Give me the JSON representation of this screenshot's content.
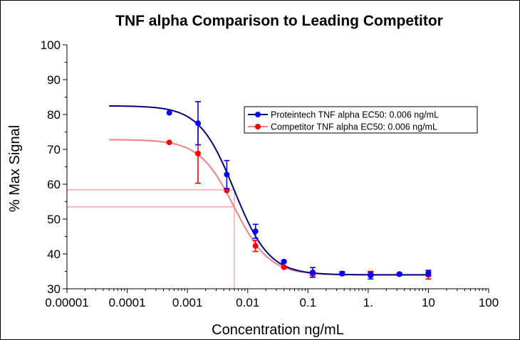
{
  "chart_data": {
    "type": "scatter",
    "title": "TNF alpha Comparison to Leading Competitor",
    "xlabel": "Concentration ng/mL",
    "ylabel": "% Max Signal",
    "x_scale": "log",
    "xlim": [
      1e-05,
      100
    ],
    "ylim": [
      30,
      100
    ],
    "x_ticks": [
      "0.00001",
      "0.0001",
      "0.001",
      "0.01",
      "0.1",
      "1.",
      "10",
      "100"
    ],
    "y_ticks": [
      "30",
      "40",
      "50",
      "60",
      "70",
      "80",
      "90",
      "100"
    ],
    "grid": false,
    "legend": "upper-right",
    "series": [
      {
        "name": "Proteintech TNF alpha EC50: 0.006 ng/mL",
        "color": "#0000ff",
        "curve_color": "#000080",
        "fit": {
          "top": 82.5,
          "bottom": 34.0,
          "ec50": 0.006,
          "hill": 1.5
        },
        "points": [
          {
            "x": 0.0005,
            "y": 80.5,
            "err": 0
          },
          {
            "x": 0.0015,
            "y": 77.5,
            "err": 6.2
          },
          {
            "x": 0.0045,
            "y": 62.8,
            "err": 4.0
          },
          {
            "x": 0.0135,
            "y": 46.5,
            "err": 2.0
          },
          {
            "x": 0.04,
            "y": 37.8,
            "err": 0.3
          },
          {
            "x": 0.12,
            "y": 34.7,
            "err": 1.4
          },
          {
            "x": 0.37,
            "y": 34.4,
            "err": 0.5
          },
          {
            "x": 1.1,
            "y": 33.8,
            "err": 1.0
          },
          {
            "x": 3.3,
            "y": 34.2,
            "err": 0.4
          },
          {
            "x": 10,
            "y": 34.5,
            "err": 0.8
          }
        ]
      },
      {
        "name": "Competitor TNF alpha EC50: 0.006 ng/mL",
        "color": "#ff0000",
        "curve_color": "#f08080",
        "fit": {
          "top": 72.8,
          "bottom": 34.0,
          "ec50": 0.006,
          "hill": 1.5
        },
        "points": [
          {
            "x": 0.0005,
            "y": 72.0,
            "err": 0
          },
          {
            "x": 0.0015,
            "y": 68.8,
            "err": 8.5
          },
          {
            "x": 0.0045,
            "y": 58.2,
            "err": 0
          },
          {
            "x": 0.0135,
            "y": 42.3,
            "err": 1.6
          },
          {
            "x": 0.04,
            "y": 36.2,
            "err": 0
          },
          {
            "x": 0.12,
            "y": 34.3,
            "err": 0.5
          },
          {
            "x": 0.37,
            "y": 34.3,
            "err": 0.3
          },
          {
            "x": 1.1,
            "y": 34.3,
            "err": 0.7
          },
          {
            "x": 3.3,
            "y": 34.2,
            "err": 0.3
          },
          {
            "x": 10,
            "y": 34.0,
            "err": 1.2
          }
        ]
      }
    ],
    "ec50_guides": {
      "x": 0.006,
      "y_levels": [
        58.4,
        53.5
      ],
      "color": "#f08080"
    }
  }
}
